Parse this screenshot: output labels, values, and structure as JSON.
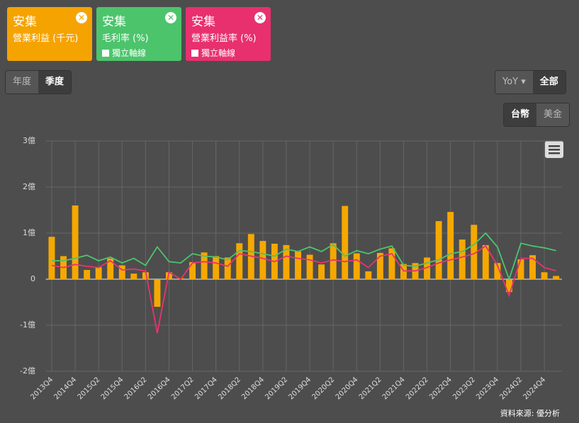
{
  "chart_data": {
    "type": "bar",
    "legend_title": "安集",
    "axis_toggle": "獨立軸線",
    "categories": [
      "2013Q4",
      null,
      "2014Q4",
      null,
      "2015Q2",
      null,
      "2015Q4",
      null,
      "2016Q2",
      null,
      "2016Q4",
      null,
      "2017Q2",
      null,
      "2017Q4",
      null,
      "2018Q2",
      null,
      "2018Q4",
      null,
      "2019Q2",
      null,
      "2019Q4",
      null,
      "2020Q2",
      null,
      "2020Q4",
      null,
      "2021Q2",
      null,
      "2021Q4",
      null,
      "2022Q2",
      null,
      "2022Q4",
      null,
      "2023Q2",
      null,
      "2023Q4",
      null,
      "2024Q2",
      null,
      "2024Q4",
      null
    ],
    "series": [
      {
        "name": "營業利益 (千元)",
        "type": "bar",
        "color": "#f5a800",
        "values": [
          0.92,
          0.5,
          1.6,
          0.2,
          0.26,
          0.45,
          0.3,
          0.12,
          0.15,
          -0.6,
          0.15,
          0.02,
          0.37,
          0.58,
          0.5,
          0.47,
          0.78,
          0.98,
          0.83,
          0.77,
          0.74,
          0.6,
          0.53,
          0.32,
          0.78,
          1.59,
          0.56,
          0.17,
          0.57,
          0.67,
          0.33,
          0.35,
          0.47,
          1.26,
          1.46,
          0.86,
          1.18,
          0.74,
          0.35,
          -0.28,
          0.43,
          0.52,
          0.15,
          0.07
        ]
      },
      {
        "name": "毛利率 (%)",
        "type": "line",
        "axis": "y2",
        "color": "#4cc46c",
        "values": [
          10,
          10,
          11.3,
          13,
          10,
          12,
          8.8,
          11.3,
          7.5,
          17.5,
          9.5,
          8.8,
          13.8,
          12.5,
          12,
          10.5,
          15.5,
          15,
          13.8,
          12.5,
          16.3,
          15,
          17.5,
          15,
          18.8,
          12.5,
          15.5,
          13.8,
          16.3,
          18,
          7.5,
          7,
          8.8,
          10.5,
          13.8,
          15,
          18.8,
          25,
          17.5,
          0,
          19.5,
          18,
          17,
          15.5
        ]
      },
      {
        "name": "營業利益率 (%)",
        "type": "line",
        "axis": "y2",
        "color": "#e8336f",
        "values": [
          7.5,
          6.3,
          8,
          7,
          6.3,
          10,
          5,
          5.5,
          4.5,
          -29.3,
          3.8,
          0,
          8.8,
          9.5,
          8.8,
          7,
          13.8,
          12.5,
          11.3,
          9.5,
          12.5,
          11.3,
          10.5,
          8.8,
          10.5,
          9.5,
          10.5,
          6.3,
          12.5,
          13.8,
          4.5,
          4.5,
          6.3,
          8.8,
          10.5,
          12,
          13.8,
          18,
          7.5,
          -8.8,
          11.3,
          11.3,
          6.3,
          4.5
        ]
      }
    ],
    "ylim": [
      -2,
      3
    ],
    "yticks": [
      {
        "value": -2,
        "label": "-2億"
      },
      {
        "value": -1,
        "label": "-1億"
      },
      0,
      {
        "value": 1,
        "label": "1億"
      },
      {
        "value": 2,
        "label": "2億"
      },
      {
        "value": 3,
        "label": "3億"
      }
    ],
    "y2lim": [
      -50,
      75
    ],
    "grid": true,
    "source": "資料來源: 優分析"
  },
  "controls": {
    "period": [
      "年度",
      "季度"
    ],
    "mode": "YoY",
    "range": "全部",
    "currency": [
      "台幣",
      "美金"
    ]
  }
}
